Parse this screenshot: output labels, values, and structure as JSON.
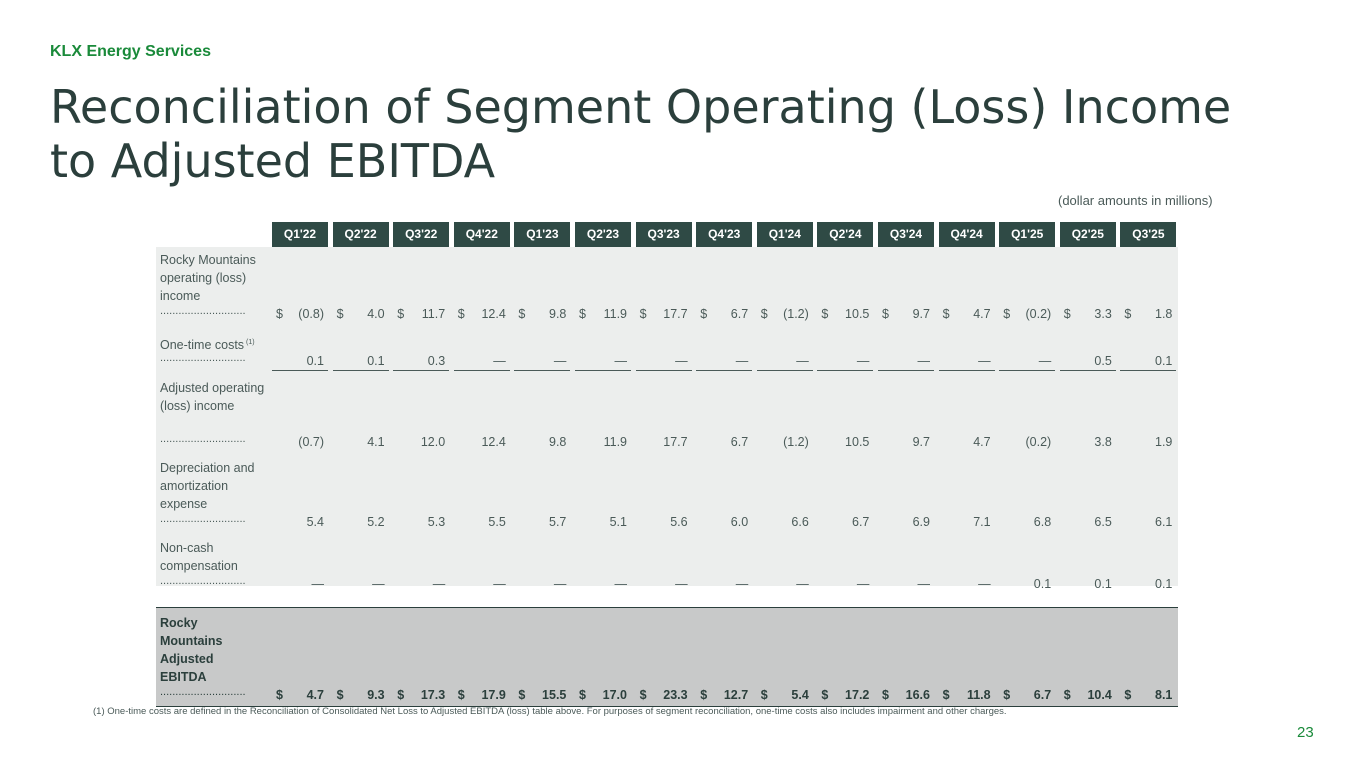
{
  "brand": "KLX Energy Services",
  "title": "Reconciliation of Segment Operating (Loss) Income to Adjusted EBITDA",
  "units_note": "(dollar amounts in millions)",
  "columns": [
    "Q1'22",
    "Q2'22",
    "Q3'22",
    "Q4'22",
    "Q1'23",
    "Q2'23",
    "Q3'23",
    "Q4'23",
    "Q1'24",
    "Q2'24",
    "Q3'24",
    "Q4'24",
    "Q1'25",
    "Q2'25",
    "Q3'25"
  ],
  "dots": "............................",
  "currency_symbol": "$",
  "rows": [
    {
      "label": "Rocky Mountains operating (loss) income",
      "currency": true,
      "underline": false,
      "values": [
        "(0.8)",
        "4.0",
        "11.7",
        "12.4",
        "9.8",
        "11.9",
        "17.7",
        "6.7",
        "(1.2)",
        "10.5",
        "9.7",
        "4.7",
        "(0.2)",
        "3.3",
        "1.8"
      ]
    },
    {
      "label": "One-time costs",
      "superscript": "(1)",
      "currency": false,
      "underline": true,
      "values": [
        "0.1",
        "0.1",
        "0.3",
        "—",
        "—",
        "—",
        "—",
        "—",
        "—",
        "—",
        "—",
        "—",
        "—",
        "0.5",
        "0.1"
      ]
    },
    {
      "label": "Adjusted operating (loss) income",
      "currency": false,
      "underline": false,
      "values": [
        "(0.7)",
        "4.1",
        "12.0",
        "12.4",
        "9.8",
        "11.9",
        "17.7",
        "6.7",
        "(1.2)",
        "10.5",
        "9.7",
        "4.7",
        "(0.2)",
        "3.8",
        "1.9"
      ]
    },
    {
      "label": "Depreciation and amortization expense",
      "currency": false,
      "underline": false,
      "values": [
        "5.4",
        "5.2",
        "5.3",
        "5.5",
        "5.7",
        "5.1",
        "5.6",
        "6.0",
        "6.6",
        "6.7",
        "6.9",
        "7.1",
        "6.8",
        "6.5",
        "6.1"
      ]
    },
    {
      "label": "Non-cash compensation",
      "currency": false,
      "underline": false,
      "values": [
        "—",
        "—",
        "—",
        "—",
        "—",
        "—",
        "—",
        "—",
        "—",
        "—",
        "—",
        "—",
        "0.1",
        "0.1",
        "0.1"
      ]
    }
  ],
  "total_row": {
    "label": "Rocky Mountains Adjusted EBITDA",
    "currency": true,
    "values": [
      "4.7",
      "9.3",
      "17.3",
      "17.9",
      "15.5",
      "17.0",
      "23.3",
      "12.7",
      "5.4",
      "17.2",
      "16.6",
      "11.8",
      "6.7",
      "10.4",
      "8.1"
    ]
  },
  "footnote": "(1) One-time costs are defined in the Reconciliation of Consolidated Net Loss to Adjusted EBITDA (loss) table above. For purposes of segment reconciliation, one-time costs also includes impairment and other charges.",
  "page_number": "23"
}
